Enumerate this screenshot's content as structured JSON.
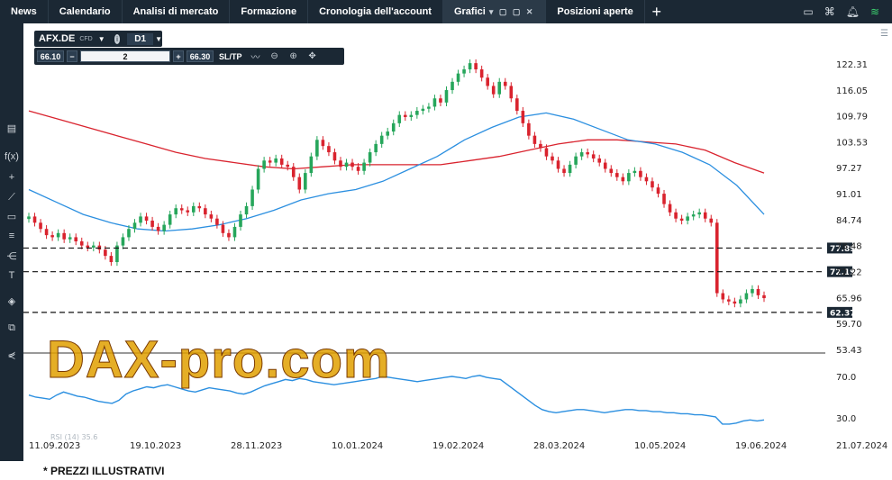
{
  "topbar": {
    "tabs": [
      "News",
      "Calendario",
      "Analisi di mercato",
      "Formazione",
      "Cronologia dell'account",
      "Grafici",
      "Posizioni aperte"
    ],
    "grafici_controls": "▾ ▢ ▢ ✕",
    "icons": [
      "layout-icon",
      "network-icon",
      "bell-icon",
      "wifi-icon"
    ]
  },
  "toolbar": {
    "symbol": "AFX.DE",
    "symbol_type": "CFD",
    "timeframe": "D1",
    "sell_price": "66.10",
    "quantity": "2",
    "buy_price": "66.30",
    "sltp": "SL/TP"
  },
  "watermark": "DAX-pro.com",
  "footnote": "* PREZZI ILLUSTRATIVI",
  "rsi_label": "RSI (14) 35.6",
  "colors": {
    "up": "#26a65b",
    "down": "#d9232e",
    "ma_slow": "#d9232e",
    "ma_fast": "#2b8fe0",
    "rsi": "#2b8fe0",
    "topbar": "#1b2834"
  },
  "chart_data": {
    "type": "candlestick",
    "symbol": "AFX.DE",
    "timeframe": "D1",
    "price_axis_ticks": [
      "122.31",
      "116.05",
      "109.79",
      "103.53",
      "97.27",
      "91.01",
      "84.74",
      "78.48",
      "72.22",
      "65.96",
      "59.70",
      "53.43"
    ],
    "rsi_axis_ticks": [
      "70.0",
      "30.0"
    ],
    "date_ticks": [
      "11.09.2023",
      "19.10.2023",
      "28.11.2023",
      "10.01.2024",
      "19.02.2024",
      "28.03.2024",
      "10.05.2024",
      "19.06.2024",
      "21.07.2024"
    ],
    "horizontal_levels": [
      "77.89",
      "72.19",
      "62.37"
    ],
    "ylim": [
      53.43,
      125
    ],
    "close_path": [
      85.5,
      84,
      82.5,
      81,
      80.5,
      81.5,
      80,
      80.5,
      79.5,
      78.5,
      78,
      78.5,
      77.5,
      76,
      74.5,
      78.5,
      80.5,
      82.5,
      84,
      85.5,
      84.5,
      83,
      82,
      83.5,
      86,
      87.5,
      87,
      86.5,
      88,
      87.5,
      86,
      85,
      83.5,
      81.5,
      80.5,
      83,
      86,
      88,
      92,
      97,
      99,
      98.5,
      99.5,
      98,
      97.5,
      95,
      92,
      96,
      100,
      104,
      102.5,
      101,
      99,
      97.5,
      98.5,
      97.5,
      96.5,
      98.5,
      101,
      103,
      105,
      106,
      108,
      110,
      109.5,
      110,
      111,
      111.5,
      112,
      114,
      113,
      116,
      118,
      120,
      121,
      122.5,
      121,
      119,
      117,
      115,
      118,
      117,
      114,
      111,
      108,
      105,
      103,
      102,
      100,
      99,
      97,
      96,
      98,
      100,
      101,
      100.5,
      99.5,
      98.5,
      97,
      96,
      95,
      94,
      96,
      96.5,
      95,
      94,
      92.5,
      91,
      88.5,
      86.5,
      85,
      84.5,
      85.5,
      86,
      86.5,
      85,
      84,
      67,
      65.5,
      65,
      64.5,
      65.5,
      67,
      68,
      66.5,
      65.8
    ],
    "ma_slow": [
      111,
      109,
      107,
      105,
      103,
      101,
      99.5,
      98.5,
      97.5,
      97,
      97.5,
      98,
      98,
      98,
      98,
      99,
      100,
      101.5,
      103,
      104,
      104,
      103.5,
      103,
      101.5,
      98.5,
      96
    ],
    "ma_fast": [
      92,
      89,
      86,
      84,
      82.5,
      82,
      82.5,
      83.5,
      85,
      87,
      89.5,
      91,
      92,
      94,
      97,
      100,
      104,
      107,
      109.5,
      110.5,
      109,
      106.5,
      104,
      103,
      101,
      98,
      93,
      86
    ],
    "rsi": [
      52,
      50,
      49,
      48,
      52,
      55,
      53,
      51,
      50,
      48,
      46,
      45,
      44,
      47,
      53,
      56,
      58,
      60,
      59,
      61,
      62,
      60,
      58,
      56,
      55,
      57,
      59,
      58,
      57,
      56,
      54,
      53,
      55,
      58,
      61,
      63,
      65,
      67,
      66,
      68,
      67,
      65,
      64,
      63,
      62,
      63,
      64,
      65,
      66,
      67,
      68,
      70,
      69,
      68,
      67,
      66,
      65,
      66,
      67,
      68,
      69,
      70,
      69,
      68,
      70,
      71,
      69,
      68,
      67,
      62,
      57,
      52,
      47,
      42,
      38,
      36,
      35,
      36,
      37,
      38,
      38,
      37,
      36,
      35,
      36,
      37,
      38,
      38,
      37,
      37,
      36,
      36,
      35,
      35,
      34,
      34,
      33,
      33,
      32,
      31,
      24,
      24,
      25,
      27,
      28,
      27,
      28
    ]
  }
}
